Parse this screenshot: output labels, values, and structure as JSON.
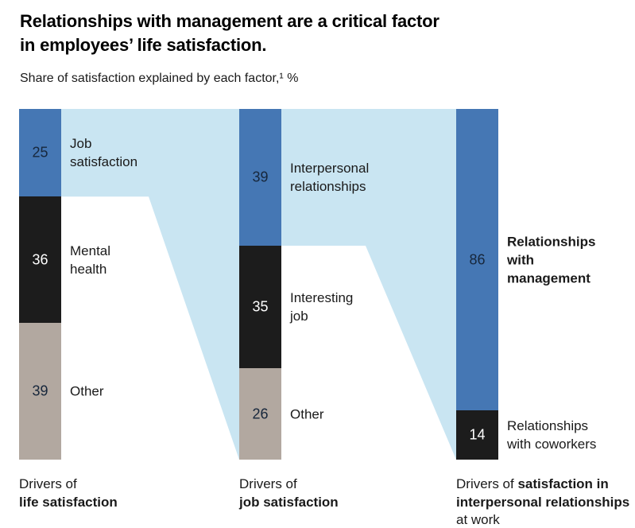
{
  "header": {
    "title_line1": "Relationships with management are a critical factor",
    "title_line2": "in employees’ life satisfaction.",
    "subtitle": "Share of satisfaction explained by each factor,¹ %"
  },
  "colors": {
    "blue": "#4577b4",
    "black": "#1c1c1c",
    "gray": "#b2a8a0",
    "flow": "#c9e5f2",
    "number_dark": "#17273c",
    "number_light": "#ffffff",
    "text": "#1a1a1a"
  },
  "chart_data": {
    "type": "bar",
    "subtype": "stacked-bar-flow-sankey",
    "title": "Share of satisfaction explained by each factor, %",
    "unit": "%",
    "axis": {
      "total": 100,
      "gridlines": false,
      "legend": "none"
    },
    "bars": [
      {
        "name": "Drivers of life satisfaction",
        "footer_lines": [
          [
            {
              "t": "Drivers of",
              "b": false
            }
          ],
          [
            {
              "t": "life satisfaction",
              "b": true
            }
          ]
        ],
        "segments": [
          {
            "value": 25,
            "label": "Job\nsatisfaction",
            "color": "blue",
            "bold": false
          },
          {
            "value": 36,
            "label": "Mental\nhealth",
            "color": "black",
            "bold": false
          },
          {
            "value": 39,
            "label": "Other",
            "color": "gray",
            "bold": false
          }
        ]
      },
      {
        "name": "Drivers of job satisfaction",
        "footer_lines": [
          [
            {
              "t": "Drivers of",
              "b": false
            }
          ],
          [
            {
              "t": "job satisfaction",
              "b": true
            }
          ]
        ],
        "segments": [
          {
            "value": 39,
            "label": "Interpersonal\nrelationships",
            "color": "blue",
            "bold": false
          },
          {
            "value": 35,
            "label": "Interesting\njob",
            "color": "black",
            "bold": false
          },
          {
            "value": 26,
            "label": "Other",
            "color": "gray",
            "bold": false
          }
        ]
      },
      {
        "name": "Drivers of satisfaction in interpersonal relationships at work",
        "footer_lines": [
          [
            {
              "t": "Drivers of ",
              "b": false
            },
            {
              "t": "satisfaction in",
              "b": true
            }
          ],
          [
            {
              "t": "interpersonal relationships",
              "b": true
            }
          ],
          [
            {
              "t": "at work",
              "b": false
            }
          ]
        ],
        "segments": [
          {
            "value": 86,
            "label": "Relationships with\nmanagement",
            "color": "blue",
            "bold": true
          },
          {
            "value": 14,
            "label": "Relationships\nwith coworkers",
            "color": "black",
            "bold": false
          }
        ]
      }
    ],
    "flows": [
      {
        "from_bar": 0,
        "from_segment": 0,
        "to_bar": 1
      },
      {
        "from_bar": 1,
        "from_segment": 0,
        "to_bar": 2
      }
    ]
  }
}
